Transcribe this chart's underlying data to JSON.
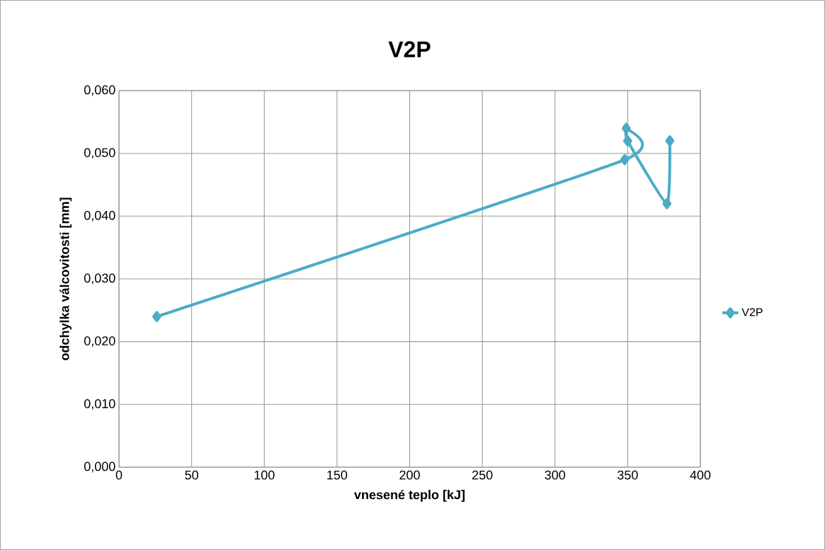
{
  "chart_data": {
    "type": "line",
    "title": "V2P",
    "xlabel": "vnesené teplo [kJ]",
    "ylabel": "odchylka válcovitosti [mm]",
    "x": [
      26,
      348,
      349,
      350,
      377,
      379
    ],
    "series": [
      {
        "name": "V2P",
        "color": "#4bacc6",
        "values": [
          0.024,
          0.049,
          0.054,
          0.052,
          0.042,
          0.052
        ]
      }
    ],
    "xlim": [
      0,
      400
    ],
    "xticks": [
      0,
      50,
      100,
      150,
      200,
      250,
      300,
      350,
      400
    ],
    "ylim": [
      0,
      0.06
    ],
    "yticks": [
      {
        "value": 0,
        "label": "0,000"
      },
      {
        "value": 0.01,
        "label": "0,010"
      },
      {
        "value": 0.02,
        "label": "0,020"
      },
      {
        "value": 0.03,
        "label": "0,030"
      },
      {
        "value": 0.04,
        "label": "0,040"
      },
      {
        "value": 0.05,
        "label": "0,050"
      },
      {
        "value": 0.06,
        "label": "0,060"
      }
    ],
    "grid": true,
    "legend": "right",
    "marker": "diamond",
    "line_style": "solid"
  }
}
